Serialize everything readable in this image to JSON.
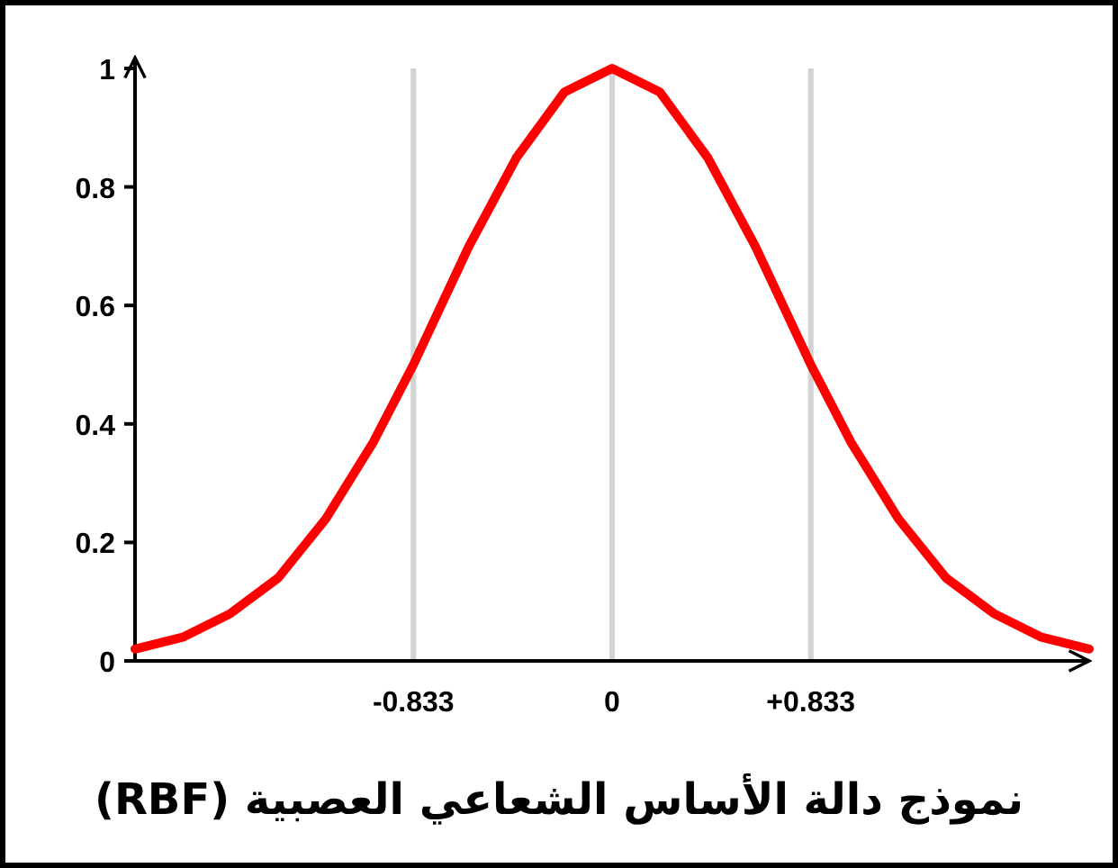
{
  "chart_data": {
    "type": "line",
    "title": "نموذج دالة الأساس الشعاعي العصبية (RBF)",
    "series": [
      {
        "color": "#ff0000",
        "x": [
          -2,
          -1.8,
          -1.6,
          -1.4,
          -1.2,
          -1,
          -0.833,
          -0.6,
          -0.4,
          -0.2,
          0,
          0.2,
          0.4,
          0.6,
          0.833,
          1,
          1.2,
          1.4,
          1.6,
          1.8,
          2
        ],
        "values": [
          0.02,
          0.04,
          0.08,
          0.14,
          0.24,
          0.37,
          0.5,
          0.7,
          0.85,
          0.96,
          1,
          0.96,
          0.85,
          0.7,
          0.5,
          0.37,
          0.24,
          0.14,
          0.08,
          0.04,
          0.02
        ]
      }
    ],
    "xlim": [
      -2,
      2
    ],
    "ylim": [
      0,
      1
    ],
    "xticks": [
      -0.833,
      0,
      {
        "value": 0.833,
        "label": "+0.833"
      }
    ],
    "yticks": [
      0,
      0.2,
      0.4,
      0.6,
      0.8,
      1
    ],
    "grid": "x",
    "marker": "none",
    "line_style": "solid"
  }
}
